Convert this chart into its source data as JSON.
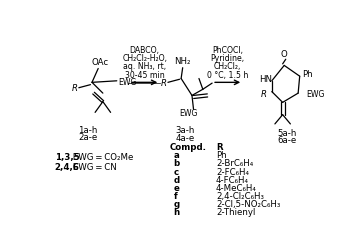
{
  "bg_color": "#ffffff",
  "fig_width": 3.64,
  "fig_height": 2.37,
  "dpi": 100,
  "step1_conditions": [
    "DABCO,",
    "CH₂Cl₂-H₂O,",
    "aq. NH₃, rt,",
    "30-45 min"
  ],
  "step2_conditions": [
    "PhCOCl,",
    "Pyridine,",
    "CH₂Cl₂,",
    "0 °C, 1.5 h"
  ],
  "compound1_label": [
    "1a-h",
    "2a-e"
  ],
  "compound2_label": [
    "3a-h",
    "4a-e"
  ],
  "compound3_label": [
    "5a-h",
    "6a-e"
  ],
  "ewg_label1_bold": "1,3,5",
  "ewg_label1_rest": " EWG = CO₂Me",
  "ewg_label2_bold": "2,4,6",
  "ewg_label2_rest": " EWG = CN",
  "compd_header": "Compd.",
  "r_header": "R",
  "compounds": [
    [
      "a",
      "Ph"
    ],
    [
      "b",
      "2-BrC₆H₄"
    ],
    [
      "c",
      "2-FC₆H₄"
    ],
    [
      "d",
      "4-FC₆H₄"
    ],
    [
      "e",
      "4-MeC₆H₄"
    ],
    [
      "f",
      "2,4-Cl₂C₆H₃"
    ],
    [
      "g",
      "2-Cl,5-NO₂C₆H₃"
    ],
    [
      "h",
      "2-Thienyl"
    ]
  ]
}
